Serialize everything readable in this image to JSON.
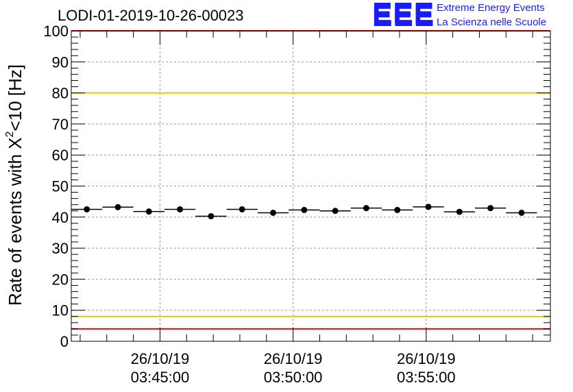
{
  "title": "LODI-01-2019-10-26-00023",
  "logo": {
    "mark": "EEE",
    "line1": "Extreme Energy Events",
    "line2": "La Scienza nelle Scuole",
    "color": "#1a1aff"
  },
  "chart_data": {
    "type": "scatter",
    "title": "LODI-01-2019-10-26-00023",
    "ylabel": {
      "prefix": "Rate of events with X",
      "sup": "2",
      "suffix": "<10 [Hz]"
    },
    "xlabel": "",
    "ylim": [
      0,
      100
    ],
    "yticks": [
      0,
      10,
      20,
      30,
      40,
      50,
      60,
      70,
      80,
      90,
      100
    ],
    "xlim": [
      "2019-10-26 03:41:40",
      "2019-10-26 03:59:40"
    ],
    "xticks": [
      {
        "t": "2019-10-26 03:45:00",
        "date": "26/10/19",
        "time": "03:45:00"
      },
      {
        "t": "2019-10-26 03:50:00",
        "date": "26/10/19",
        "time": "03:50:00"
      },
      {
        "t": "2019-10-26 03:55:00",
        "date": "26/10/19",
        "time": "03:55:00"
      }
    ],
    "grid": true,
    "series": [
      {
        "x_start": [
          "03:41:40",
          "03:42:50",
          "03:44:00",
          "03:45:10",
          "03:46:20",
          "03:47:30",
          "03:48:40",
          "03:49:50",
          "03:51:00",
          "03:52:10",
          "03:53:20",
          "03:54:30",
          "03:55:40",
          "03:56:50",
          "03:58:00"
        ],
        "x_end": [
          "03:42:50",
          "03:44:00",
          "03:45:10",
          "03:46:20",
          "03:47:30",
          "03:48:40",
          "03:49:50",
          "03:51:00",
          "03:52:10",
          "03:53:20",
          "03:54:30",
          "03:55:40",
          "03:56:50",
          "03:58:00",
          "03:59:10"
        ],
        "values": [
          42.5,
          43.2,
          41.8,
          42.5,
          40.3,
          42.5,
          41.4,
          42.3,
          42.0,
          42.9,
          42.3,
          43.3,
          41.7,
          42.9,
          41.4
        ],
        "color": "#000000"
      }
    ],
    "reference_lines": [
      {
        "y": 100,
        "color": "#ff0000"
      },
      {
        "y": 80,
        "color": "#e6c800"
      },
      {
        "y": 8,
        "color": "#e6c800"
      },
      {
        "y": 4,
        "color": "#ff0000"
      }
    ]
  }
}
